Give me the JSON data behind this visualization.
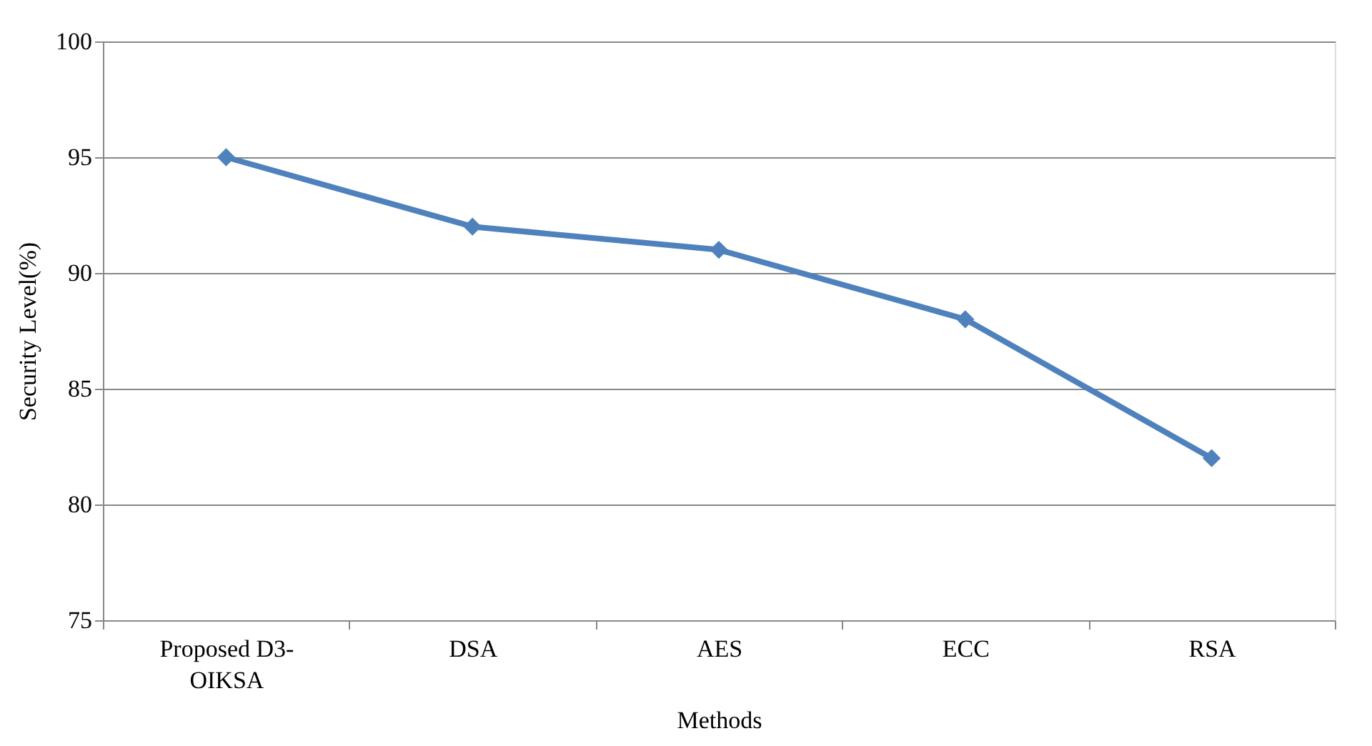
{
  "chart_data": {
    "type": "line",
    "xlabel": "Methods",
    "ylabel": "Security Level(%)",
    "categories": [
      "Proposed D3-OIKSA",
      "DSA",
      "AES",
      "ECC",
      "RSA"
    ],
    "series": [
      {
        "color": "#4f81bd",
        "values": [
          95,
          92,
          91,
          88,
          82
        ]
      }
    ],
    "ylim": [
      75,
      100
    ],
    "yticks": [
      75,
      80,
      85,
      90,
      95,
      100
    ],
    "grid": "y",
    "marker": "diamond"
  }
}
